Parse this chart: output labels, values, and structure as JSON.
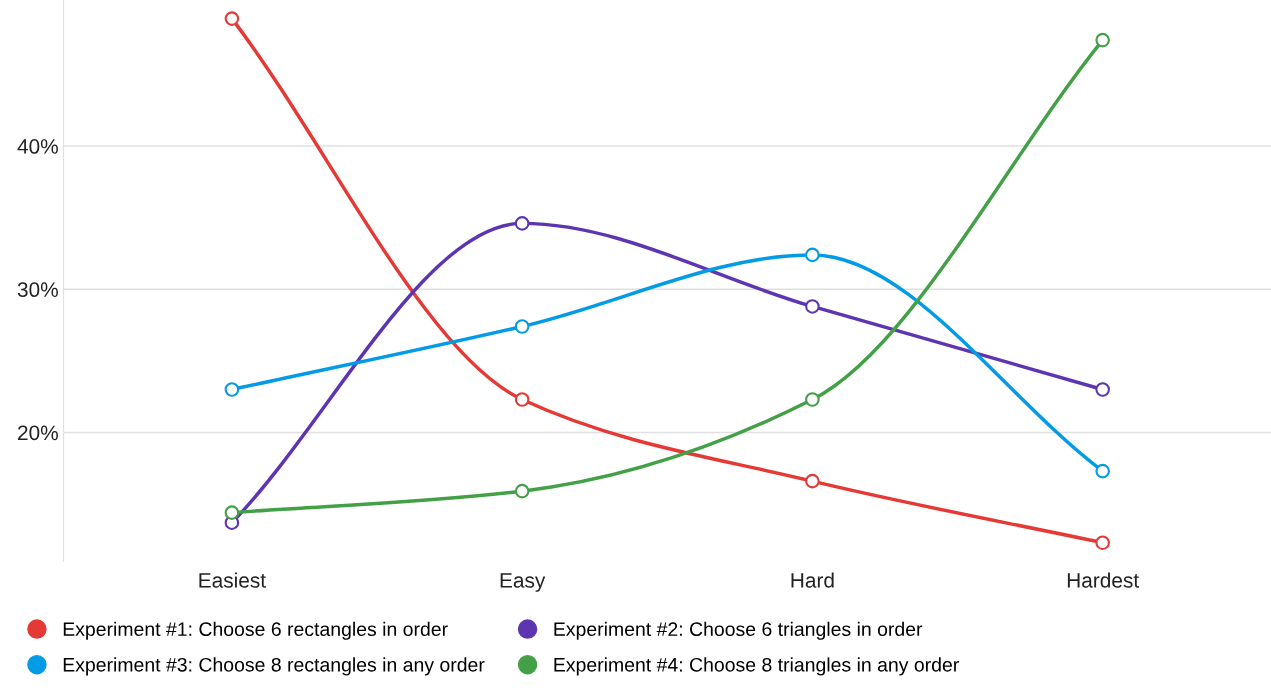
{
  "chart_data": {
    "type": "line",
    "categories": [
      "Easiest",
      "Easy",
      "Hard",
      "Hardest"
    ],
    "series": [
      {
        "name": "Experiment #1: Choose 6 rectangles in order",
        "color": "#e53935",
        "values": [
          48.9,
          22.3,
          16.6,
          12.3
        ]
      },
      {
        "name": "Experiment #2: Choose 6 triangles in order",
        "color": "#5e35b1",
        "values": [
          13.7,
          34.6,
          28.8,
          23.0
        ]
      },
      {
        "name": "Experiment #3: Choose 8 rectangles in any order",
        "color": "#039be5",
        "values": [
          23.0,
          27.4,
          32.4,
          17.3
        ]
      },
      {
        "name": "Experiment #4: Choose 8 triangles in any order",
        "color": "#43a047",
        "values": [
          14.4,
          15.9,
          22.3,
          47.4
        ]
      }
    ],
    "ylim": [
      11,
      50.2
    ],
    "yticks": [
      {
        "value": 20,
        "label": "20%"
      },
      {
        "value": 30,
        "label": "30%"
      },
      {
        "value": 40,
        "label": "40%"
      }
    ],
    "grid": "y",
    "legend": "bottom",
    "marker": "circle",
    "line_style": "solid"
  }
}
